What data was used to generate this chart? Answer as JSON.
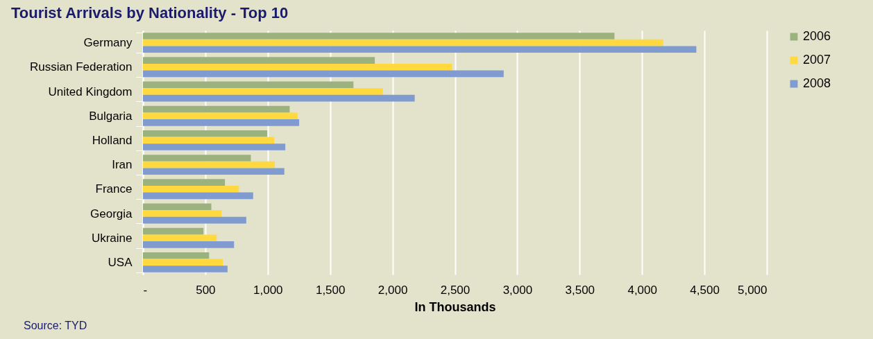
{
  "chart_data": {
    "type": "bar",
    "orientation": "horizontal",
    "title": "Tourist Arrivals by Nationality - Top 10",
    "xlabel": "In Thousands",
    "categories": [
      "Germany",
      "Russian Federation",
      "United Kingdom",
      "Bulgaria",
      "Holland",
      "Iran",
      "France",
      "Georgia",
      "Ukraine",
      "USA"
    ],
    "series": [
      {
        "name": "2006",
        "color": "#9bb27f",
        "values": [
          3779,
          1858,
          1687,
          1176,
          996,
          865,
          657,
          548,
          485,
          530
        ]
      },
      {
        "name": "2007",
        "color": "#ffd93d",
        "values": [
          4169,
          2477,
          1923,
          1239,
          1052,
          1057,
          769,
          630,
          591,
          641
        ]
      },
      {
        "name": "2008",
        "color": "#7f9bcf",
        "values": [
          4435,
          2891,
          2178,
          1252,
          1141,
          1133,
          883,
          828,
          730,
          678
        ]
      }
    ],
    "xlim": [
      0,
      5000
    ],
    "xticks": [
      {
        "value": 0,
        "label": "-"
      },
      500,
      {
        "value": 1000,
        "label": "1,000"
      },
      {
        "value": 1500,
        "label": "1,500"
      },
      {
        "value": 2000,
        "label": "2,000"
      },
      {
        "value": 2500,
        "label": "2,500"
      },
      {
        "value": 3000,
        "label": "3,000"
      },
      {
        "value": 3500,
        "label": "3,500"
      },
      {
        "value": 4000,
        "label": "4,000"
      },
      {
        "value": 4500,
        "label": "4,500"
      },
      {
        "value": 5000,
        "label": "5,000"
      }
    ],
    "grid": "x",
    "legend": "right",
    "annotations": [
      "Source: TYD"
    ]
  }
}
